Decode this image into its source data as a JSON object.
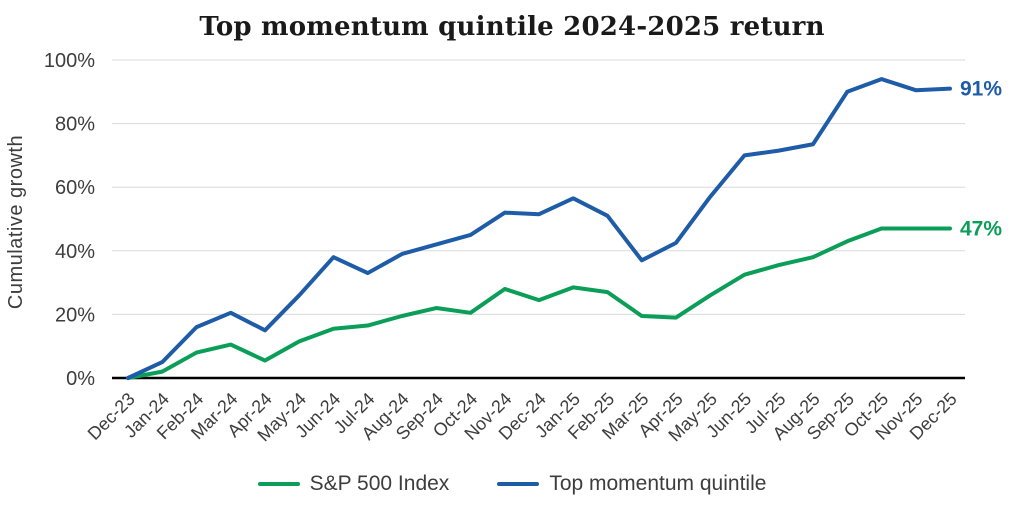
{
  "title": "Top momentum quintile 2024-2025 return",
  "colors": {
    "sp500_green": "#0b9e58",
    "momentum_blue": "#1f5ca8",
    "gridline": "#d9d9d9",
    "axis": "#000000",
    "tick_text": "#3d3d3d",
    "title_text": "#1a1a1a"
  },
  "chart_data": {
    "type": "line",
    "title": "Top momentum quintile 2024-2025 return",
    "xlabel": "",
    "ylabel": "Cumulative growth",
    "ylim": [
      0,
      100
    ],
    "grid": true,
    "legend_position": "bottom",
    "x_tick_rotation": 45,
    "y_ticks": [
      {
        "label": "0%",
        "value": 0
      },
      {
        "label": "20%",
        "value": 20
      },
      {
        "label": "40%",
        "value": 40
      },
      {
        "label": "60%",
        "value": 60
      },
      {
        "label": "80%",
        "value": 80
      },
      {
        "label": "100%",
        "value": 100
      }
    ],
    "categories": [
      "Dec-23",
      "Jan-24",
      "Feb-24",
      "Mar-24",
      "Apr-24",
      "May-24",
      "Jun-24",
      "Jul-24",
      "Aug-24",
      "Sep-24",
      "Oct-24",
      "Nov-24",
      "Dec-24",
      "Jan-25",
      "Feb-25",
      "Mar-25",
      "Apr-25",
      "May-25",
      "Jun-25",
      "Jul-25",
      "Aug-25",
      "Sep-25",
      "Oct-25",
      "Nov-25",
      "Dec-25"
    ],
    "series": [
      {
        "name": "S&P 500 Index",
        "color": "#0b9e58",
        "end_label": "47%",
        "values": [
          0,
          2,
          8,
          10.5,
          5.5,
          11.5,
          15.5,
          16.5,
          19.5,
          22,
          20.5,
          28,
          24.5,
          28.5,
          27,
          19.5,
          19,
          26,
          32.5,
          35.5,
          38,
          43,
          47,
          47,
          47
        ]
      },
      {
        "name": "Top momentum quintile",
        "color": "#1f5ca8",
        "end_label": "91%",
        "values": [
          0,
          5,
          16,
          20.5,
          15,
          26,
          38,
          33,
          39,
          42,
          45,
          52,
          51.5,
          56.5,
          51,
          37,
          42.5,
          57,
          70,
          71.5,
          73.5,
          90,
          94,
          90.5,
          91
        ]
      }
    ]
  }
}
